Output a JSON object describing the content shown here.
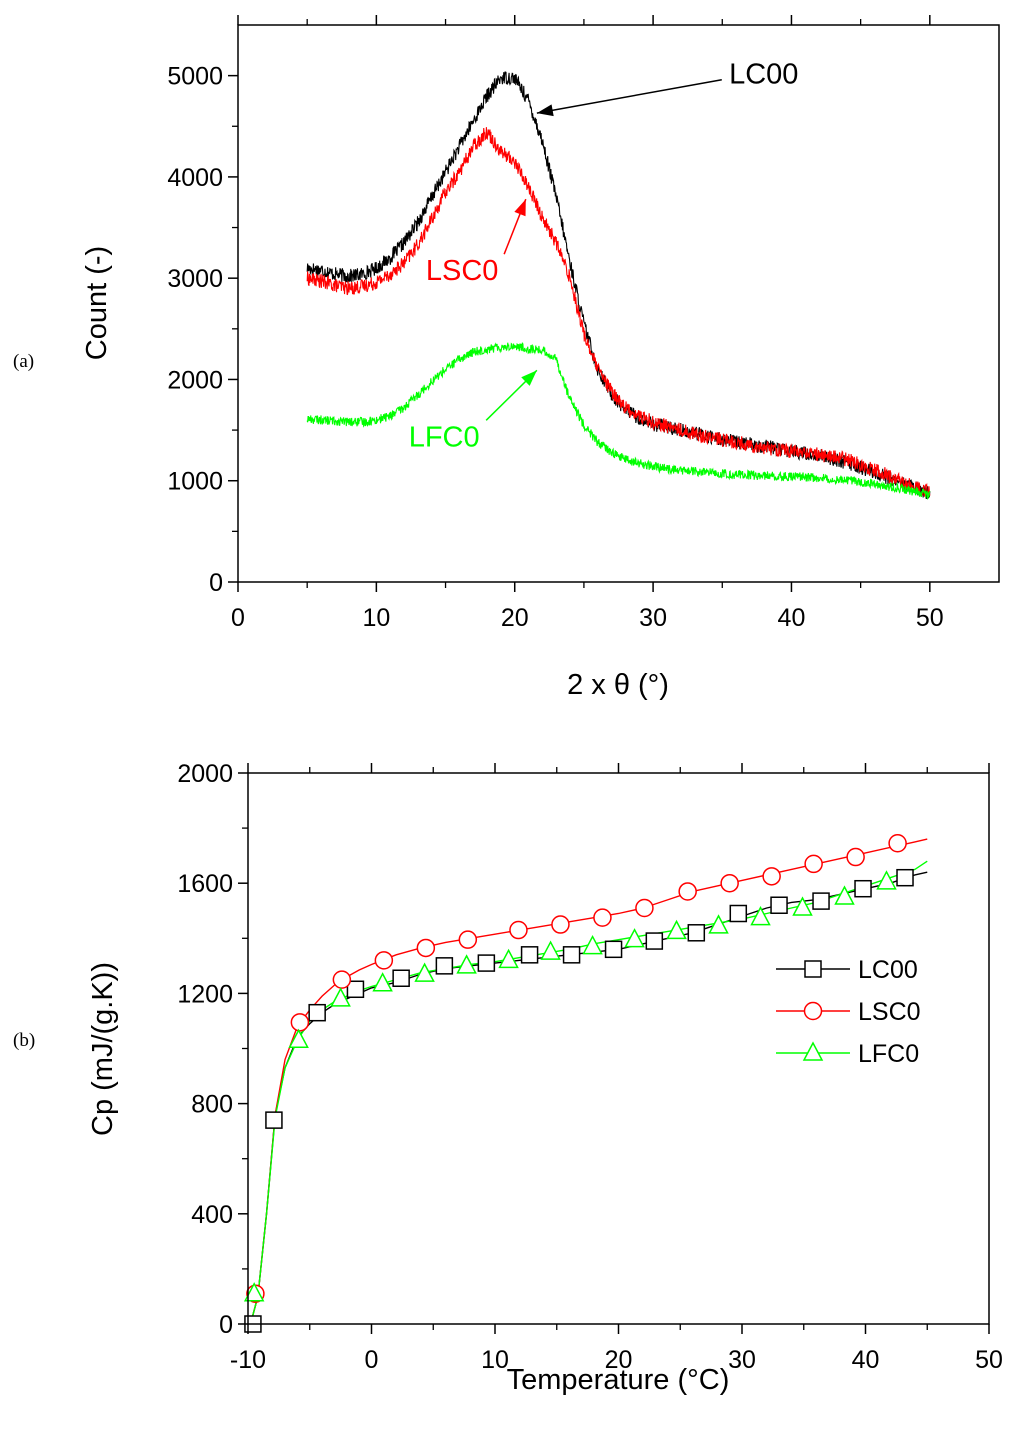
{
  "panels": {
    "a_label": "(a)",
    "b_label": "(b)"
  },
  "chart_data": [
    {
      "type": "line",
      "title": "",
      "xlabel": "2 x θ (°)",
      "ylabel": "Count (-)",
      "xlim": [
        0,
        55
      ],
      "ylim": [
        0,
        5500
      ],
      "x_ticks": [
        0,
        10,
        20,
        30,
        40,
        50
      ],
      "y_ticks": [
        0,
        1000,
        2000,
        3000,
        4000,
        5000
      ],
      "x_tick_labels": [
        "0",
        "10",
        "20",
        "30",
        "40",
        "50"
      ],
      "y_tick_labels": [
        "0",
        "1000",
        "2000",
        "3000",
        "4000",
        "5000"
      ],
      "grid": false,
      "series": [
        {
          "name": "LC00",
          "color": "#000000",
          "noise": 70,
          "x": [
            5,
            6,
            7,
            8,
            9,
            10,
            11,
            12,
            13,
            14,
            15,
            16,
            17,
            18,
            19,
            20,
            21,
            22,
            23,
            24,
            25,
            26,
            27,
            28,
            29,
            30,
            32,
            34,
            36,
            38,
            40,
            42,
            44,
            46,
            48,
            50
          ],
          "y": [
            3100,
            3080,
            3040,
            3020,
            3040,
            3100,
            3200,
            3350,
            3550,
            3800,
            4050,
            4300,
            4550,
            4800,
            4980,
            4980,
            4750,
            4350,
            3800,
            3150,
            2550,
            2100,
            1850,
            1700,
            1620,
            1560,
            1500,
            1440,
            1380,
            1340,
            1290,
            1250,
            1180,
            1080,
            980,
            870
          ]
        },
        {
          "name": "LSC0",
          "color": "#ff0000",
          "noise": 70,
          "x": [
            5,
            6,
            7,
            8,
            9,
            10,
            11,
            12,
            13,
            14,
            15,
            16,
            17,
            18,
            19,
            20,
            21,
            22,
            23,
            24,
            25,
            26,
            27,
            28,
            29,
            30,
            32,
            34,
            36,
            38,
            40,
            42,
            44,
            46,
            48,
            50
          ],
          "y": [
            3000,
            2970,
            2930,
            2900,
            2920,
            2960,
            3040,
            3150,
            3330,
            3580,
            3850,
            4050,
            4300,
            4450,
            4250,
            4150,
            3900,
            3600,
            3350,
            3000,
            2450,
            2100,
            1880,
            1720,
            1640,
            1580,
            1500,
            1430,
            1380,
            1330,
            1290,
            1260,
            1210,
            1110,
            990,
            880
          ]
        },
        {
          "name": "LFC0",
          "color": "#00ff00",
          "noise": 45,
          "x": [
            5,
            6,
            7,
            8,
            9,
            10,
            11,
            12,
            13,
            14,
            15,
            16,
            17,
            18,
            19,
            20,
            21,
            22,
            23,
            24,
            25,
            26,
            27,
            28,
            29,
            30,
            32,
            34,
            36,
            38,
            40,
            42,
            44,
            46,
            48,
            50
          ],
          "y": [
            1610,
            1600,
            1590,
            1580,
            1580,
            1600,
            1640,
            1720,
            1850,
            1980,
            2100,
            2200,
            2270,
            2300,
            2320,
            2330,
            2300,
            2290,
            2200,
            1800,
            1550,
            1380,
            1280,
            1210,
            1170,
            1140,
            1100,
            1080,
            1060,
            1050,
            1040,
            1030,
            1010,
            970,
            920,
            860
          ]
        }
      ],
      "annotations": [
        {
          "text": "LC00",
          "color": "#000000",
          "x": 38,
          "y": 4920,
          "arrow_to": [
            21.6,
            4630
          ]
        },
        {
          "text": "LSC0",
          "color": "#ff0000",
          "x": 16.2,
          "y": 2980,
          "arrow_to": [
            20.8,
            3780
          ]
        },
        {
          "text": "LFC0",
          "color": "#00ff00",
          "x": 14.9,
          "y": 1340,
          "arrow_to": [
            21.6,
            2090
          ]
        }
      ]
    },
    {
      "type": "line",
      "title": "",
      "xlabel": "Temperature (°C)",
      "ylabel": "Cp (mJ/(g.K))",
      "xlim": [
        -10,
        50
      ],
      "ylim": [
        0,
        2000
      ],
      "x_ticks": [
        -10,
        0,
        10,
        20,
        30,
        40,
        50
      ],
      "y_ticks": [
        0,
        400,
        800,
        1200,
        1600,
        2000
      ],
      "x_tick_labels": [
        "-10",
        "0",
        "10",
        "20",
        "30",
        "40",
        "50"
      ],
      "y_tick_labels": [
        "0",
        "400",
        "800",
        "1200",
        "1600",
        "2000"
      ],
      "grid": false,
      "legend_position": "right",
      "series": [
        {
          "name": "LC00",
          "color": "#000000",
          "marker": "square",
          "x": [
            -9.8,
            -9.2,
            -8.5,
            -7.8,
            -7.0,
            -6.0,
            -5.0,
            -4.0,
            -3.0,
            -2.0,
            -1.0,
            0,
            2,
            4,
            6,
            8,
            10,
            12,
            14,
            16,
            18,
            20,
            22,
            24,
            26,
            28,
            30,
            32,
            34,
            36,
            38,
            40,
            42,
            44,
            45
          ],
          "y": [
            0,
            100,
            400,
            760,
            930,
            1040,
            1090,
            1130,
            1160,
            1180,
            1200,
            1220,
            1240,
            1270,
            1290,
            1300,
            1310,
            1320,
            1330,
            1340,
            1350,
            1360,
            1380,
            1400,
            1420,
            1450,
            1480,
            1510,
            1530,
            1540,
            1560,
            1580,
            1600,
            1630,
            1640
          ],
          "markers_x": [
            -9.6,
            -7.9,
            -4.4,
            -1.3,
            2.4,
            5.9,
            9.3,
            12.8,
            16.2,
            19.6,
            22.9,
            26.3,
            29.7,
            33.0,
            36.4,
            39.8,
            43.2
          ],
          "markers_y": [
            0,
            740,
            1130,
            1215,
            1255,
            1300,
            1310,
            1340,
            1340,
            1360,
            1390,
            1420,
            1490,
            1520,
            1535,
            1580,
            1620
          ]
        },
        {
          "name": "LSC0",
          "color": "#ff0000",
          "marker": "circle",
          "x": [
            -9.8,
            -9.2,
            -8.5,
            -7.8,
            -7.0,
            -6.0,
            -5.0,
            -4.0,
            -3.0,
            -2.0,
            -1.0,
            0,
            2,
            4,
            6,
            8,
            10,
            12,
            14,
            16,
            18,
            20,
            22,
            24,
            26,
            28,
            30,
            32,
            34,
            36,
            38,
            40,
            42,
            44,
            45
          ],
          "y": [
            0,
            100,
            400,
            760,
            960,
            1080,
            1140,
            1190,
            1230,
            1260,
            1285,
            1305,
            1340,
            1365,
            1385,
            1400,
            1415,
            1430,
            1445,
            1460,
            1475,
            1490,
            1510,
            1540,
            1570,
            1590,
            1610,
            1630,
            1650,
            1670,
            1690,
            1710,
            1730,
            1750,
            1760
          ],
          "markers_x": [
            -9.4,
            -5.8,
            -2.4,
            1.0,
            4.4,
            7.8,
            11.9,
            15.3,
            18.7,
            22.1,
            25.6,
            29.0,
            32.4,
            35.8,
            39.2,
            42.6
          ],
          "markers_y": [
            110,
            1095,
            1250,
            1320,
            1365,
            1395,
            1430,
            1450,
            1475,
            1510,
            1570,
            1600,
            1625,
            1670,
            1695,
            1745
          ]
        },
        {
          "name": "LFC0",
          "color": "#00ff00",
          "marker": "triangle",
          "x": [
            -9.8,
            -9.2,
            -8.5,
            -7.8,
            -7.0,
            -6.0,
            -5.0,
            -4.0,
            -3.0,
            -2.0,
            -1.0,
            0,
            2,
            4,
            6,
            8,
            10,
            12,
            14,
            16,
            18,
            20,
            22,
            24,
            26,
            28,
            30,
            32,
            34,
            36,
            38,
            40,
            42,
            44,
            45
          ],
          "y": [
            0,
            100,
            400,
            750,
            930,
            1030,
            1100,
            1140,
            1170,
            1190,
            1210,
            1225,
            1250,
            1275,
            1290,
            1305,
            1315,
            1330,
            1345,
            1360,
            1380,
            1395,
            1410,
            1425,
            1440,
            1455,
            1470,
            1490,
            1510,
            1530,
            1560,
            1590,
            1620,
            1650,
            1680
          ],
          "markers_x": [
            -9.5,
            -5.9,
            -2.5,
            0.9,
            4.3,
            7.7,
            11.1,
            14.5,
            17.9,
            21.3,
            24.7,
            28.1,
            31.5,
            34.9,
            38.3,
            41.7
          ],
          "markers_y": [
            110,
            1030,
            1180,
            1235,
            1270,
            1300,
            1320,
            1350,
            1370,
            1395,
            1425,
            1445,
            1475,
            1510,
            1550,
            1605
          ]
        }
      ]
    }
  ]
}
